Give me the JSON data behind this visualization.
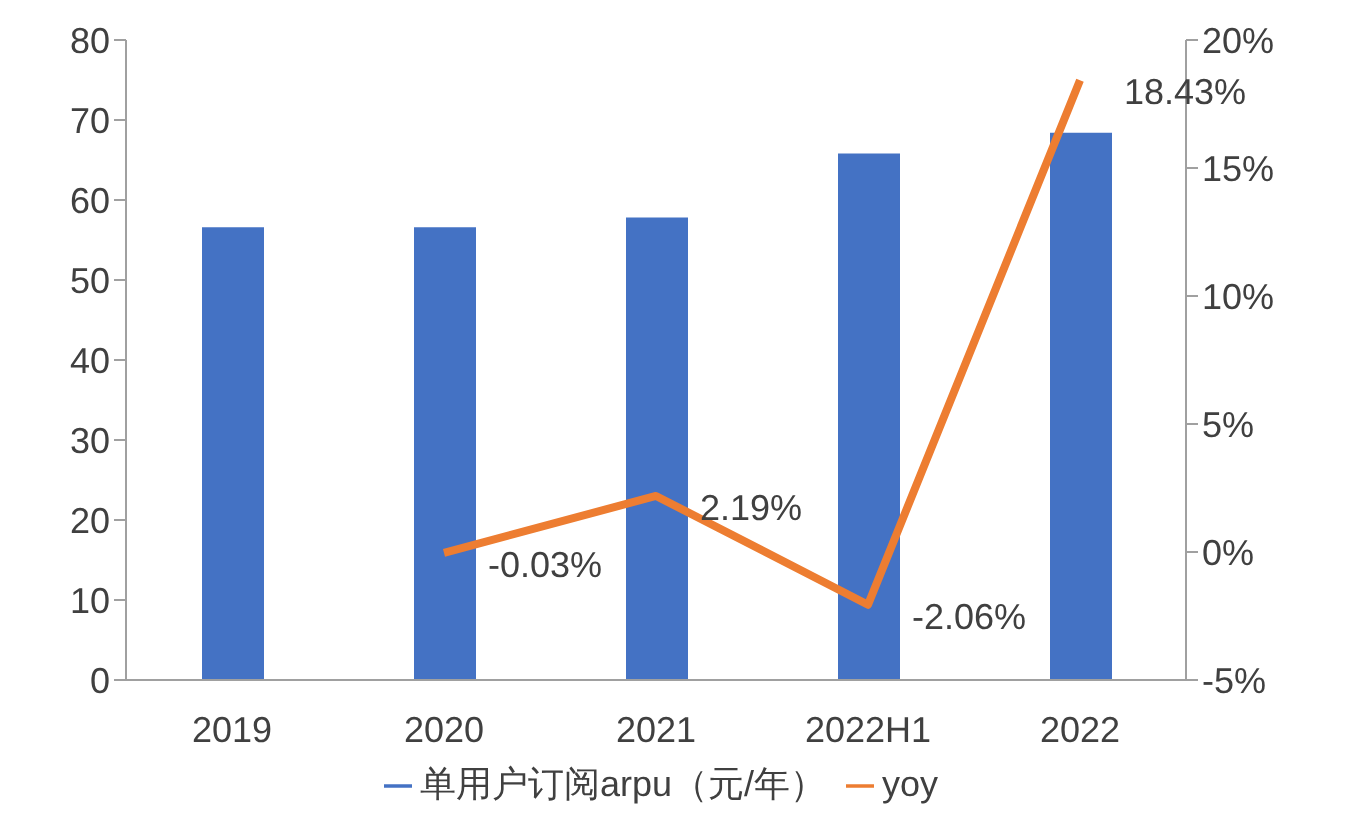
{
  "chart_data": {
    "type": "bar",
    "categories": [
      "2019",
      "2020",
      "2021",
      "2022H1",
      "2022"
    ],
    "series": [
      {
        "name": "单用户订阅arpu（元/年）",
        "color": "#4472c4",
        "values": [
          56.6,
          56.6,
          57.8,
          65.8,
          68.4
        ]
      },
      {
        "name": "yoy",
        "type": "line",
        "axis": "y2",
        "color": "#ed7d31",
        "values": [
          null,
          -0.03,
          2.19,
          -2.06,
          18.43
        ],
        "value_labels": [
          null,
          "-0.03%",
          "2.19%",
          "-2.06%",
          "18.43%"
        ]
      }
    ],
    "ylim": [
      0,
      80
    ],
    "yticks": [
      0,
      10,
      20,
      30,
      40,
      50,
      60,
      70,
      80
    ],
    "y2lim": [
      -5,
      20
    ],
    "y2ticks": [
      {
        "value": -5,
        "label": "-5%"
      },
      {
        "value": 0,
        "label": "0%"
      },
      {
        "value": 5,
        "label": "5%"
      },
      {
        "value": 10,
        "label": "10%"
      },
      {
        "value": 15,
        "label": "15%"
      },
      {
        "value": 20,
        "label": "20%"
      }
    ],
    "grid": false,
    "legend": "bottom",
    "marker": "none"
  }
}
